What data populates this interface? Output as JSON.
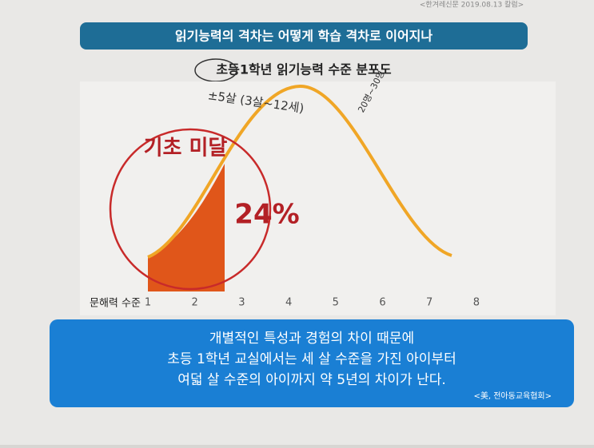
{
  "corner_note": "<한겨레신문 2019.08.13 칼럼>",
  "header": {
    "title": "읽기능력의 격차는 어떻게 학습 격차로 이어지나"
  },
  "figure": {
    "title": "초등1학년 읽기능력 수준 분포도",
    "circle_label": "기초 미달",
    "percent_label": "24%",
    "axis_label": "문해력 수준",
    "ticks": [
      "1",
      "2",
      "3",
      "4",
      "5",
      "6",
      "7",
      "8"
    ],
    "handwritten": [
      "±5살 (3살~12세)",
      "20명~30명"
    ]
  },
  "callout": {
    "lines": [
      "개별적인 특성과 경험의 차이 때문에",
      "초등 1학년 교실에서는 세 살 수준을 가진 아이부터",
      "여덟 살 수준의 아이까지 약 5년의 차이가 난다."
    ],
    "source": "<美, 전아동교육협회>"
  }
}
